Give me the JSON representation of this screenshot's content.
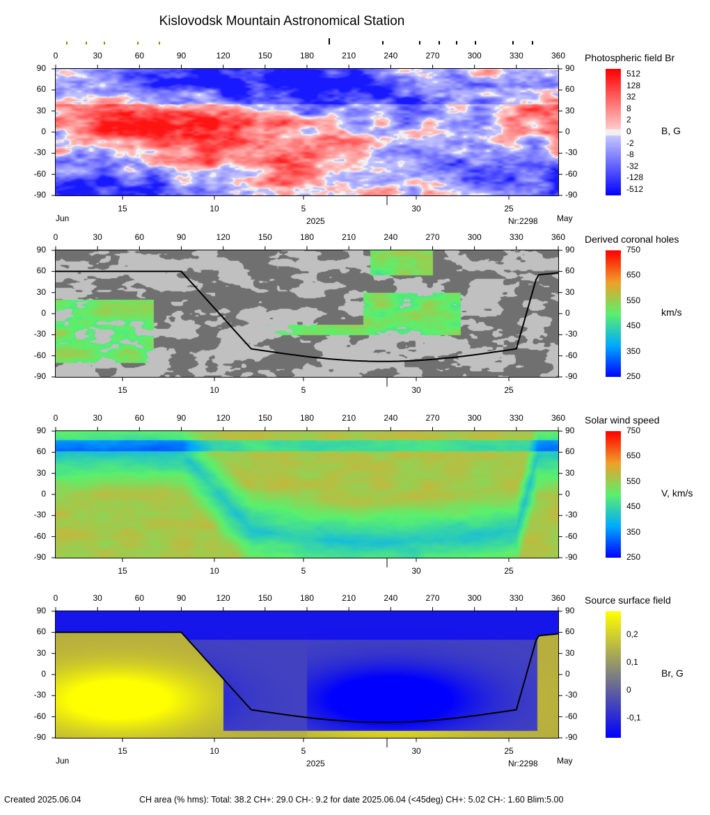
{
  "title": "Kislovodsk Mountain Astronomical Station",
  "lon_ticks": [
    "0",
    "30",
    "60",
    "90",
    "120",
    "150",
    "180",
    "210",
    "240",
    "270",
    "300",
    "330",
    "360"
  ],
  "lat_ticks": [
    "90",
    "60",
    "30",
    "0",
    "-30",
    "-60",
    "-90"
  ],
  "date_ticks": [
    "15",
    "10",
    "5",
    "30",
    "25"
  ],
  "month_left": "Jun",
  "month_right": "May",
  "year": "2025",
  "rotation": "Nr:2298",
  "panels": [
    {
      "title": "Photospheric field Br",
      "unit": "B, G",
      "colorbar": "field",
      "scale": [
        "512",
        "128",
        "32",
        "8",
        "2",
        "0",
        "-2",
        "-8",
        "-32",
        "-128",
        "-512"
      ]
    },
    {
      "title": "Derived coronal holes",
      "unit": "km/s",
      "colorbar": "speed",
      "scale": [
        "750",
        "650",
        "550",
        "450",
        "350",
        "250"
      ]
    },
    {
      "title": "Solar wind speed",
      "unit": "V, km/s",
      "colorbar": "speed",
      "scale": [
        "750",
        "650",
        "550",
        "450",
        "350",
        "250"
      ]
    },
    {
      "title": "Source surface field",
      "unit": "Br, G",
      "colorbar": "source",
      "scale": [
        "0,2",
        "0,1",
        "0",
        "-0,1"
      ]
    }
  ],
  "footer": {
    "created": "Created  2025.06.04",
    "ch_area": "CH area (% hms): Total: 38.2 CH+: 29.0   CH-: 9.2 for date 2025.06.04 (<45deg) CH+: 5.02    CH-: 1.60 Blim:5.00"
  },
  "colors": {
    "positive": "#ff2020",
    "negative": "#1a1aff",
    "coronal_gray": "#c0c0c0",
    "coronal_dark": "#707070",
    "neutral_line": "#000000",
    "source_pos": "#ffff00",
    "source_neg": "#0000ff"
  }
}
